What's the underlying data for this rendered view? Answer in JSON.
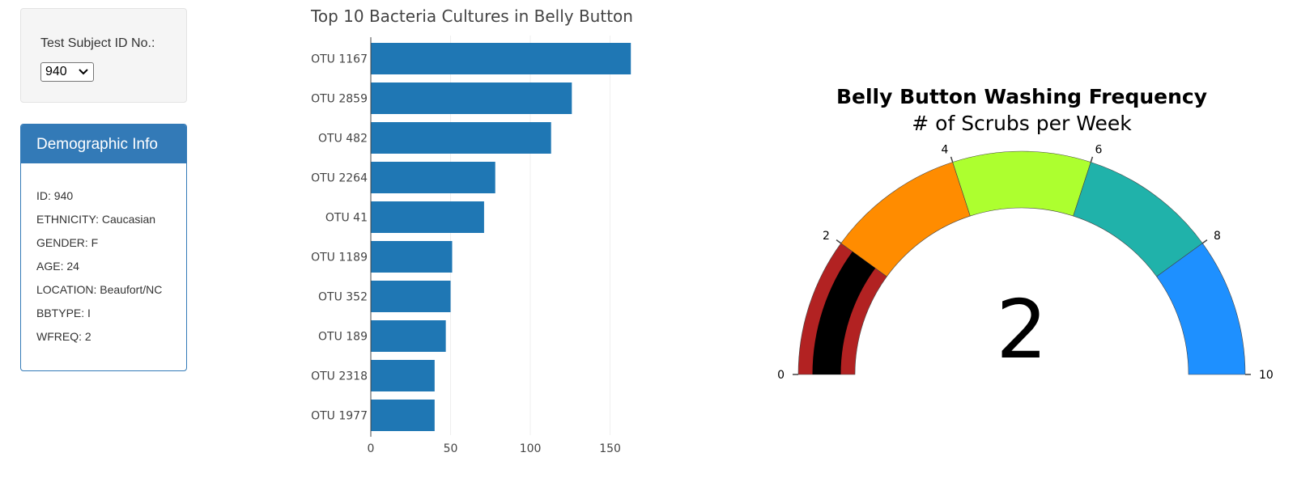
{
  "selector": {
    "label": "Test Subject ID No.:",
    "selected": "940"
  },
  "demographics": {
    "title": "Demographic Info",
    "rows": [
      "ID: 940",
      "ETHNICITY: Caucasian",
      "GENDER: F",
      "AGE: 24",
      "LOCATION: Beaufort/NC",
      "BBTYPE: I",
      "WFREQ: 2"
    ]
  },
  "chart_data": [
    {
      "type": "bar",
      "orientation": "horizontal",
      "title": "Top 10 Bacteria Cultures in Belly Button",
      "categories": [
        "OTU 1167",
        "OTU 2859",
        "OTU 482",
        "OTU 2264",
        "OTU 41",
        "OTU 1189",
        "OTU 352",
        "OTU 189",
        "OTU 2318",
        "OTU 1977"
      ],
      "values": [
        163,
        126,
        113,
        78,
        71,
        51,
        50,
        47,
        40,
        40
      ],
      "xlim": [
        0,
        170
      ],
      "xticks": [
        0,
        50,
        100,
        150
      ],
      "grid": true,
      "color": "#1f77b4"
    },
    {
      "type": "gauge",
      "title": "Belly Button Washing Frequency",
      "subtitle": "# of Scrubs per Week",
      "value": 2,
      "value_label": "2",
      "range": [
        0,
        10
      ],
      "ticks": [
        0,
        2,
        4,
        6,
        8,
        10
      ],
      "steps": [
        {
          "range": [
            0,
            2
          ],
          "color": "#b22222"
        },
        {
          "range": [
            2,
            4
          ],
          "color": "#ff8c00"
        },
        {
          "range": [
            4,
            6
          ],
          "color": "#adff2f"
        },
        {
          "range": [
            6,
            8
          ],
          "color": "#20b2aa"
        },
        {
          "range": [
            8,
            10
          ],
          "color": "#1e90ff"
        }
      ],
      "bar_color": "#000000"
    }
  ]
}
